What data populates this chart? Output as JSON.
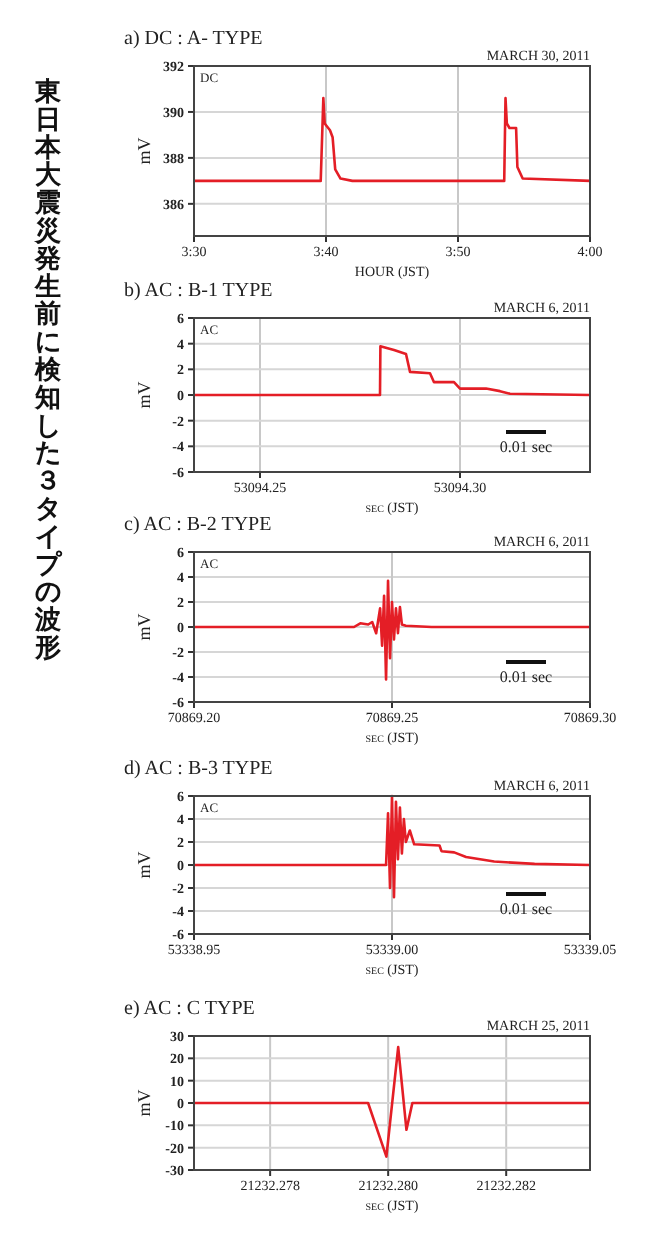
{
  "chart_data": [
    {
      "type": "other",
      "title": "東日本大震災発生前に検知した３タイプの波形"
    },
    {
      "type": "line",
      "title": "a) DC : A- TYPE",
      "subtitle": "MARCH 30, 2011",
      "xlabel": "HOUR (JST)",
      "ylabel": "mV",
      "annotations": [
        "DC"
      ],
      "grid": true,
      "xlim": [
        3.5,
        4.0
      ],
      "ylim": [
        384.6,
        392
      ],
      "xticks": [
        {
          "value": 3.5,
          "label": "3:30"
        },
        {
          "value": 3.6667,
          "label": "3:40"
        },
        {
          "value": 3.8333,
          "label": "3:50"
        },
        {
          "value": 4.0,
          "label": "4:00"
        }
      ],
      "yticks": [
        386,
        388,
        390,
        392
      ],
      "x": [
        3.5,
        3.66,
        3.6633,
        3.665,
        3.6717,
        3.675,
        3.6783,
        3.685,
        3.7,
        3.8917,
        3.8933,
        3.895,
        3.8983,
        3.9067,
        3.9083,
        3.915,
        4.0
      ],
      "series": [
        {
          "color": "#e41e26",
          "values": [
            387.0,
            387.0,
            390.6,
            389.5,
            389.2,
            388.9,
            387.5,
            387.1,
            387.0,
            387.0,
            390.6,
            389.5,
            389.3,
            389.3,
            387.6,
            387.1,
            387.0
          ]
        }
      ]
    },
    {
      "type": "line",
      "title": "b) AC : B-1 TYPE",
      "subtitle": "MARCH 6, 2011",
      "xlabel": "sec (JST)",
      "ylabel": "mV",
      "annotations": [
        "AC",
        "0.01 sec"
      ],
      "grid": true,
      "xlim": [
        53094.2335,
        53094.3325
      ],
      "ylim": [
        -6,
        6
      ],
      "xticks": [
        {
          "value": 53094.25,
          "label": "53094.25"
        },
        {
          "value": 53094.3,
          "label": "53094.30"
        }
      ],
      "yticks": [
        -6,
        -4,
        -2,
        0,
        2,
        4,
        6
      ],
      "x": [
        53094.2335,
        53094.28,
        53094.2801,
        53094.2835,
        53094.2865,
        53094.2875,
        53094.2925,
        53094.2935,
        53094.2985,
        53094.3,
        53094.3065,
        53094.31,
        53094.3125,
        53094.3325
      ],
      "series": [
        {
          "color": "#e41e26",
          "values": [
            0,
            0,
            3.8,
            3.5,
            3.2,
            1.8,
            1.7,
            1.0,
            1.0,
            0.5,
            0.5,
            0.3,
            0.1,
            0
          ]
        }
      ]
    },
    {
      "type": "line",
      "title": "c) AC : B-2 TYPE",
      "subtitle": "MARCH 6, 2011",
      "xlabel": "sec (JST)",
      "ylabel": "mV",
      "annotations": [
        "AC",
        "0.01 sec"
      ],
      "grid": "y",
      "ref_lines": [
        {
          "axis": "x",
          "value": 70869.25,
          "color": "#c8c8c8"
        }
      ],
      "xlim": [
        70869.2,
        70869.3
      ],
      "ylim": [
        -6,
        6
      ],
      "xticks": [
        {
          "value": 70869.2,
          "label": "70869.20"
        },
        {
          "value": 70869.25,
          "label": "70869.25"
        },
        {
          "value": 70869.3,
          "label": "70869.30"
        }
      ],
      "yticks": [
        -6,
        -4,
        -2,
        0,
        2,
        4,
        6
      ],
      "x": [
        70869.2,
        70869.2404,
        70869.242,
        70869.244,
        70869.245,
        70869.246,
        70869.247,
        70869.2475,
        70869.248,
        70869.2485,
        70869.249,
        70869.2495,
        70869.25,
        70869.2505,
        70869.251,
        70869.2515,
        70869.252,
        70869.2525,
        70869.2535,
        70869.26,
        70869.3
      ],
      "series": [
        {
          "color": "#e41e26",
          "values": [
            0,
            0,
            0.3,
            0.2,
            0.4,
            -0.5,
            1.5,
            -1.5,
            2.5,
            -4.2,
            3.7,
            -2.5,
            2.0,
            -1.0,
            1.5,
            -0.5,
            1.6,
            0.2,
            0.1,
            0,
            0
          ]
        }
      ]
    },
    {
      "type": "line",
      "title": "d) AC : B-3 TYPE",
      "subtitle": "MARCH 6, 2011",
      "xlabel": "sec (JST)",
      "ylabel": "mV",
      "annotations": [
        "AC",
        "0.01 sec"
      ],
      "grid": "y",
      "ref_lines": [
        {
          "axis": "x",
          "value": 53339.0,
          "color": "#c8c8c8"
        }
      ],
      "xlim": [
        53338.95,
        53339.05
      ],
      "ylim": [
        -6,
        6
      ],
      "xticks": [
        {
          "value": 53338.95,
          "label": "53338.95"
        },
        {
          "value": 53339.0,
          "label": "53339.00"
        },
        {
          "value": 53339.05,
          "label": "53339.05"
        }
      ],
      "yticks": [
        -6,
        -4,
        -2,
        0,
        2,
        4,
        6
      ],
      "x": [
        53338.95,
        53338.9985,
        53338.999,
        53338.9995,
        53339.0,
        53339.0005,
        53339.001,
        53339.0015,
        53339.002,
        53339.0025,
        53339.003,
        53339.0035,
        53339.0045,
        53339.0056,
        53339.012,
        53339.0125,
        53339.0157,
        53339.0187,
        53339.0258,
        53339.036,
        53339.05
      ],
      "series": [
        {
          "color": "#e41e26",
          "values": [
            0,
            0,
            4.5,
            -2.0,
            6.0,
            -2.8,
            5.5,
            0.5,
            5.0,
            1.0,
            4.0,
            2.0,
            3.0,
            1.8,
            1.7,
            1.2,
            1.1,
            0.7,
            0.3,
            0.1,
            0
          ]
        }
      ]
    },
    {
      "type": "line",
      "title": "e) AC : C  TYPE",
      "subtitle": "MARCH 25, 2011",
      "xlabel": "sec (JST)",
      "ylabel": "mV",
      "grid": true,
      "xlim": [
        21232.27671,
        21232.28342
      ],
      "ylim": [
        -30,
        30
      ],
      "xticks": [
        {
          "value": 21232.278,
          "label": "21232.278"
        },
        {
          "value": 21232.28,
          "label": "21232.280"
        },
        {
          "value": 21232.282,
          "label": "21232.282"
        }
      ],
      "yticks": [
        -30,
        -20,
        -10,
        0,
        10,
        20,
        30
      ],
      "x": [
        21232.27671,
        21232.27966,
        21232.27997,
        21232.28017,
        21232.28031,
        21232.28041,
        21232.28342
      ],
      "series": [
        {
          "color": "#e41e26",
          "values": [
            0,
            0,
            -24,
            25,
            -12,
            0,
            0
          ]
        }
      ]
    }
  ]
}
